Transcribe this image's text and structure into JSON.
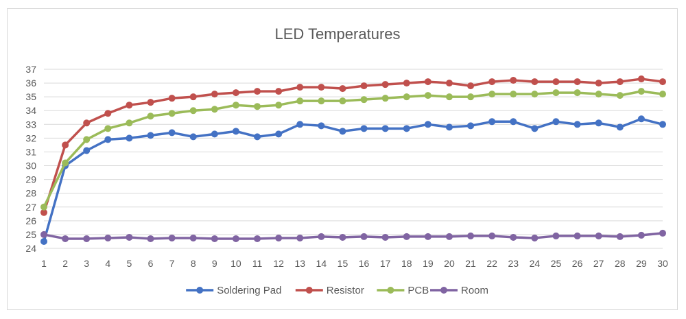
{
  "chart_data": {
    "type": "line",
    "title": "LED Temperatures",
    "xlabel": "",
    "ylabel": "",
    "x": [
      1,
      2,
      3,
      4,
      5,
      6,
      7,
      8,
      9,
      10,
      11,
      12,
      13,
      14,
      15,
      16,
      17,
      18,
      19,
      20,
      21,
      22,
      23,
      24,
      25,
      26,
      27,
      28,
      29,
      30
    ],
    "ylim": [
      24,
      37
    ],
    "y_ticks": [
      24,
      25,
      26,
      27,
      28,
      29,
      30,
      31,
      32,
      33,
      34,
      35,
      36,
      37
    ],
    "grid": true,
    "legend_position": "bottom",
    "series": [
      {
        "name": "Soldering Pad",
        "color": "#4472C4",
        "values": [
          24.5,
          30.0,
          31.1,
          31.9,
          32.0,
          32.2,
          32.4,
          32.1,
          32.3,
          32.5,
          32.1,
          32.3,
          33.0,
          32.9,
          32.5,
          32.7,
          32.7,
          32.7,
          33.0,
          32.8,
          32.9,
          33.2,
          33.2,
          32.7,
          33.2,
          33.0,
          33.1,
          32.8,
          33.4,
          33.0
        ]
      },
      {
        "name": "Resistor",
        "color": "#C0504D",
        "values": [
          26.6,
          31.5,
          33.1,
          33.8,
          34.4,
          34.6,
          34.9,
          35.0,
          35.2,
          35.3,
          35.4,
          35.4,
          35.7,
          35.7,
          35.6,
          35.8,
          35.9,
          36.0,
          36.1,
          36.0,
          35.8,
          36.1,
          36.2,
          36.1,
          36.1,
          36.1,
          36.0,
          36.1,
          36.3,
          36.1
        ]
      },
      {
        "name": "PCB",
        "color": "#9BBB59",
        "values": [
          27.0,
          30.2,
          31.9,
          32.7,
          33.1,
          33.6,
          33.8,
          34.0,
          34.1,
          34.4,
          34.3,
          34.4,
          34.7,
          34.7,
          34.7,
          34.8,
          34.9,
          35.0,
          35.1,
          35.0,
          35.0,
          35.2,
          35.2,
          35.2,
          35.3,
          35.3,
          35.2,
          35.1,
          35.4,
          35.2
        ]
      },
      {
        "name": "Room",
        "color": "#8064A2",
        "values": [
          25.0,
          24.7,
          24.7,
          24.75,
          24.8,
          24.7,
          24.75,
          24.75,
          24.7,
          24.7,
          24.7,
          24.75,
          24.75,
          24.85,
          24.8,
          24.85,
          24.8,
          24.85,
          24.85,
          24.85,
          24.9,
          24.9,
          24.8,
          24.75,
          24.9,
          24.9,
          24.9,
          24.85,
          24.95,
          25.1
        ]
      }
    ]
  }
}
